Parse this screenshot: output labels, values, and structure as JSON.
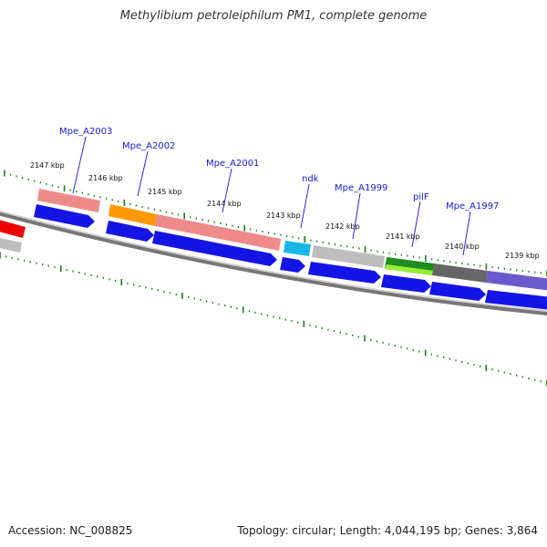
{
  "title": "Methylibium petroleiphilum PM1, complete genome",
  "accession": "Accession: NC_008825",
  "topology": "Topology: circular; Length: 4,044,195 bp; Genes: 3,864",
  "ticks": [
    {
      "label": "2147 kbp"
    },
    {
      "label": "2146 kbp"
    },
    {
      "label": "2145 kbp"
    },
    {
      "label": "2144 kbp"
    },
    {
      "label": "2143 kbp"
    },
    {
      "label": "2142 kbp"
    },
    {
      "label": "2141 kbp"
    },
    {
      "label": "2140 kbp"
    },
    {
      "label": "2139 kbp"
    }
  ],
  "gene_labels": [
    "Mpe_A2003",
    "Mpe_A2002",
    "Mpe_A2001",
    "ndk",
    "Mpe_A1999",
    "pilF",
    "Mpe_A1997"
  ],
  "colors": {
    "backbone": "#777777",
    "cds_arrow": "#1414e6",
    "tick": "#1f7a1f",
    "label_line": "#2a2ad6",
    "feature_pink": "#ee8a8a",
    "feature_orange": "#ff9900",
    "feature_cyan": "#17b8e8",
    "feature_gray": "#bdbdbd",
    "feature_green": "#1e8c1e",
    "feature_lightgreen": "#99ee33",
    "feature_darkgray": "#666666",
    "feature_purple": "#6a5acd",
    "feature_red": "#ee0000"
  }
}
